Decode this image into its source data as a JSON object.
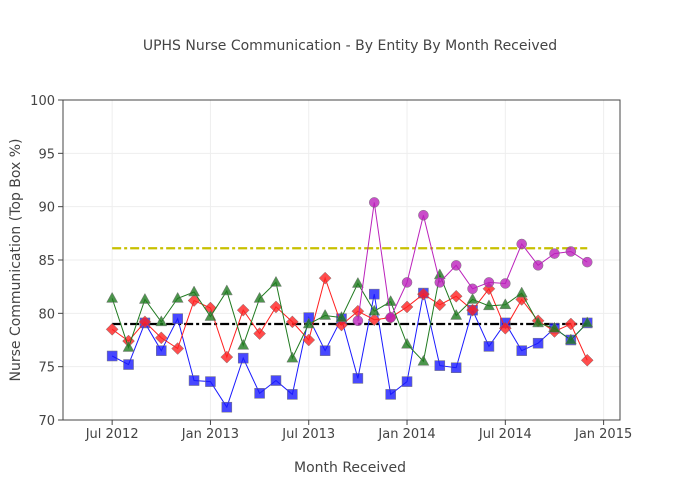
{
  "chart_data": {
    "type": "line",
    "title": "UPHS Nurse Communication - By Entity By Month Received",
    "xlabel": "Month Received",
    "ylabel": "Nurse Communication (Top Box %)",
    "ylim": [
      70,
      100
    ],
    "yticks": [
      70,
      75,
      80,
      85,
      90,
      95,
      100
    ],
    "xticks": [
      {
        "label": "Jul 2012",
        "month": 0
      },
      {
        "label": "Jan 2013",
        "month": 6
      },
      {
        "label": "Jul 2013",
        "month": 12
      },
      {
        "label": "Jan 2014",
        "month": 18
      },
      {
        "label": "Jul 2014",
        "month": 24
      },
      {
        "label": "Jan 2015",
        "month": 30
      }
    ],
    "xlim_months": [
      -3,
      31
    ],
    "grid": true,
    "start_month": "Jul 2012",
    "series": [
      {
        "name": "blue",
        "color": "#1a1aff",
        "marker": "square",
        "start": 0,
        "values": [
          76.0,
          75.2,
          79.1,
          76.5,
          79.5,
          73.7,
          73.6,
          71.2,
          75.8,
          72.5,
          73.7,
          72.4,
          79.6,
          76.5,
          79.5,
          73.9,
          81.8,
          72.4,
          73.6,
          81.9,
          75.1,
          74.9,
          80.3,
          76.9,
          79.1,
          76.5,
          77.2,
          78.6,
          77.5,
          79.1
        ]
      },
      {
        "name": "red",
        "color": "#ff2020",
        "marker": "diamond",
        "start": 0,
        "values": [
          78.5,
          77.4,
          79.2,
          77.7,
          76.7,
          81.2,
          80.5,
          75.9,
          80.3,
          78.1,
          80.6,
          79.2,
          77.5,
          83.3,
          78.9,
          80.2,
          79.4,
          79.6,
          80.6,
          81.8,
          80.8,
          81.6,
          80.3,
          82.3,
          78.6,
          81.3,
          79.3,
          78.3,
          79.0,
          75.6
        ]
      },
      {
        "name": "green",
        "color": "#1f7a1f",
        "marker": "triangle",
        "start": 0,
        "values": [
          81.4,
          76.8,
          81.3,
          79.2,
          81.4,
          82.0,
          79.7,
          82.1,
          77.0,
          81.4,
          82.9,
          75.8,
          79.0,
          79.8,
          79.6,
          82.8,
          80.2,
          81.1,
          77.1,
          75.5,
          83.6,
          79.8,
          81.3,
          80.7,
          80.8,
          81.9,
          79.1,
          78.6,
          77.5,
          79.1
        ]
      },
      {
        "name": "purple",
        "color": "#bb22bb",
        "marker": "circle",
        "start": 15,
        "values": [
          79.3,
          90.4,
          79.6,
          82.9,
          89.2,
          82.9,
          84.5,
          82.3,
          82.9,
          82.8,
          86.5,
          84.5,
          85.6,
          85.8,
          84.8
        ]
      }
    ],
    "reference_lines": [
      {
        "name": "black-reference",
        "value": 79.0,
        "color": "#000000",
        "from": 0,
        "to": 29
      },
      {
        "name": "yellow-reference",
        "value": 86.1,
        "color": "#c8c000",
        "from": 0,
        "to": 29
      }
    ]
  }
}
